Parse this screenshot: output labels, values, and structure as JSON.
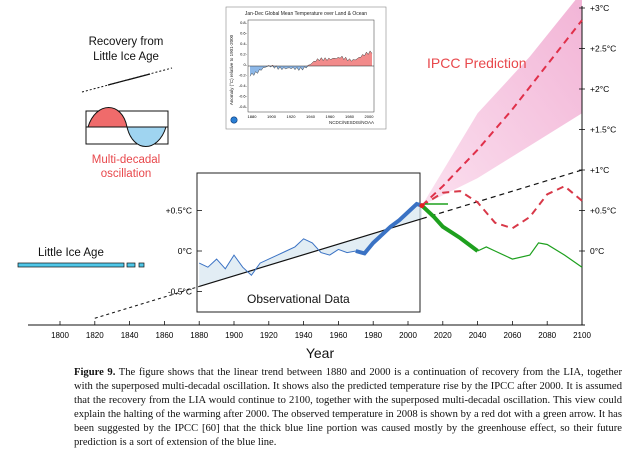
{
  "labels": {
    "recovery": [
      "Recovery from",
      "Little  Ice Age"
    ],
    "multidecadal": [
      "Multi-decadal",
      "oscillation"
    ],
    "lia": "Little Ice Age",
    "ipcc": "IPCC Prediction",
    "observational": "Observational Data",
    "year": "Year"
  },
  "inset": {
    "title": "Jan-Dec Global Mean Temperature over Land & Ocean",
    "ylabel": "Anomaly (°C) relative to 1901-2000",
    "yticks": [
      "0.8-",
      "0.6-",
      "0.4-",
      "0.2-",
      "0-",
      "-0.2-",
      "-0.4-",
      "-0.6-",
      "-0.8-"
    ],
    "xticks": [
      "1880",
      "1900",
      "1920",
      "1940",
      "1960",
      "1980",
      "2000"
    ],
    "credit": "NCDC/NESDIS/NOAA"
  },
  "colors": {
    "ipcc_band": "#f5c6e0",
    "ipcc_line": "#e0304a",
    "ipcc_text": "#e8484c",
    "blue_line": "#3a72c4",
    "green_line": "#1ea01e",
    "lia_bar": "#4fc7e8",
    "osc_red": "#ef6b6b",
    "osc_blue": "#9fd4f0"
  },
  "chart_data": {
    "type": "line",
    "xlabel": "Year",
    "xlim": [
      1800,
      2100
    ],
    "x_ticks": [
      "1800",
      "1820",
      "1840",
      "1860",
      "1880",
      "1900",
      "1920",
      "1940",
      "1960",
      "1980",
      "2000",
      "2020",
      "2040",
      "2060",
      "2080",
      "2100"
    ],
    "left_ticks": [
      "+0.5°C",
      "0°C",
      "-0.5°C"
    ],
    "right_ticks": [
      "+3°C",
      "+2.5°C",
      "+2°C",
      "+1.5°C",
      "+1°C",
      "+0.5°C",
      "0°C"
    ],
    "linear_trend": {
      "x": [
        1820,
        2100
      ],
      "y": [
        -0.83,
        1.0
      ]
    },
    "observed": {
      "x": [
        1880,
        1885,
        1890,
        1895,
        1900,
        1905,
        1910,
        1915,
        1920,
        1925,
        1930,
        1935,
        1940,
        1945,
        1950,
        1955,
        1960,
        1965,
        1970,
        1975,
        1980,
        1985,
        1990,
        1995,
        2000,
        2005,
        2008
      ],
      "y": [
        -0.15,
        -0.2,
        -0.1,
        -0.22,
        -0.05,
        -0.2,
        -0.3,
        -0.15,
        -0.1,
        -0.05,
        0.0,
        0.05,
        0.15,
        0.1,
        -0.02,
        -0.05,
        0.02,
        -0.02,
        0.0,
        -0.03,
        0.1,
        0.2,
        0.3,
        0.38,
        0.48,
        0.58,
        0.56
      ]
    },
    "blue_segment": {
      "x": [
        1970,
        2008
      ],
      "y": [
        0.0,
        0.56
      ]
    },
    "green_prediction": {
      "x": [
        2008,
        2015,
        2020,
        2030,
        2040,
        2045,
        2050,
        2060,
        2070,
        2075,
        2080,
        2090,
        2100
      ],
      "y": [
        0.56,
        0.42,
        0.3,
        0.16,
        0.0,
        0.05,
        0.0,
        -0.1,
        -0.05,
        0.1,
        0.08,
        -0.05,
        -0.2
      ]
    },
    "oscillation_dashed": {
      "x": [
        2008,
        2020,
        2030,
        2040,
        2050,
        2060,
        2070,
        2080,
        2090,
        2100
      ],
      "y": [
        0.56,
        0.72,
        0.74,
        0.6,
        0.35,
        0.28,
        0.42,
        0.7,
        0.8,
        0.62
      ]
    },
    "ipcc_prediction": {
      "x": [
        2008,
        2020,
        2040,
        2060,
        2080,
        2100
      ],
      "y": [
        0.56,
        0.8,
        1.25,
        1.75,
        2.3,
        2.85
      ]
    },
    "ipcc_band_upper": {
      "x": [
        2008,
        2040,
        2070,
        2100
      ],
      "y": [
        0.56,
        1.7,
        2.4,
        3.2
      ]
    },
    "ipcc_band_lower": {
      "x": [
        2008,
        2040,
        2070,
        2100
      ],
      "y": [
        0.56,
        0.9,
        1.3,
        1.7
      ]
    }
  },
  "caption": {
    "label": "Figure 9.",
    "text": " The figure shows that the linear trend between 1880 and 2000 is a continuation of recovery from the LIA, together with the superposed multi-decadal oscillation. It shows also the predicted temperature rise by the IPCC after 2000. It is assumed that the recovery from the LIA would continue to 2100, together with the superposed multi-decadal oscillation. This view could explain the halting of the warming after 2000. The observed temperature in 2008 is shown by a red dot with a green arrow. It has been suggested by the IPCC [60] that the thick blue line portion was caused mostly by the greenhouse effect, so their future prediction is a sort of extension of the blue line."
  }
}
